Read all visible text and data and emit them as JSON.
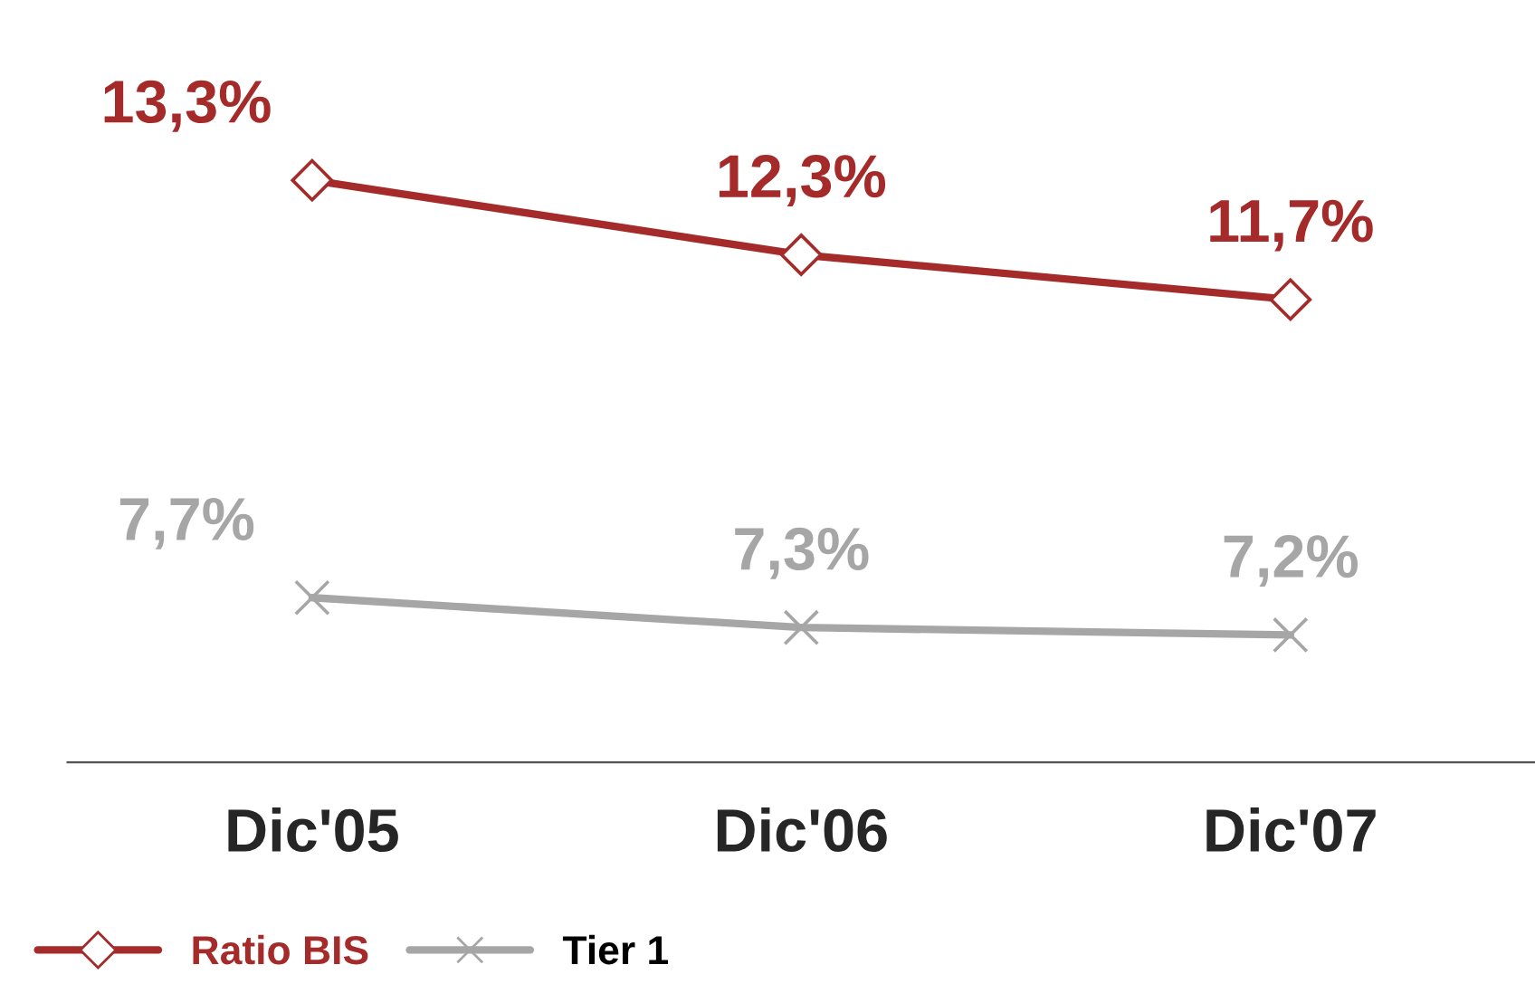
{
  "chart_data": {
    "type": "line",
    "categories": [
      "Dic'05",
      "Dic'06",
      "Dic'07"
    ],
    "series": [
      {
        "name": "Ratio BIS",
        "color": "#a52a2a",
        "values": [
          13.3,
          12.3,
          11.7
        ],
        "value_labels": [
          "13,3%",
          "12,3%",
          "11,7%"
        ],
        "marker": "diamond"
      },
      {
        "name": "Tier 1",
        "color": "#a6a6a6",
        "values": [
          7.7,
          7.3,
          7.2
        ],
        "value_labels": [
          "7,7%",
          "7,3%",
          "7,2%"
        ],
        "marker": "cross"
      }
    ],
    "tick_labels": "x",
    "legend": "bottom left",
    "line_style": "solid"
  }
}
